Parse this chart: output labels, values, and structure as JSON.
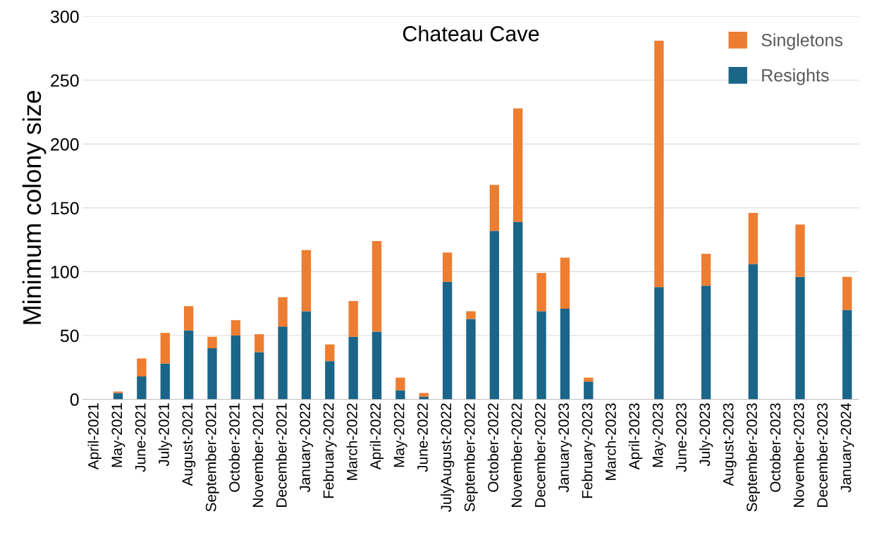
{
  "chart_data": {
    "type": "bar",
    "title": "Chateau Cave",
    "ylabel": "Minimum colony size",
    "stacked": true,
    "categories": [
      "April-2021",
      "May-2021",
      "June-2021",
      "July-2021",
      "August-2021",
      "September-2021",
      "October-2021",
      "November-2021",
      "December-2021",
      "January-2022",
      "February-2022",
      "March-2022",
      "April-2022",
      "May-2022",
      "June-2022",
      "JulyAugust-2022",
      "September-2022",
      "October-2022",
      "November-2022",
      "December-2022",
      "January-2023",
      "February-2023",
      "March-2023",
      "April-2023",
      "May-2023",
      "June-2023",
      "July-2023",
      "August-2023",
      "September-2023",
      "October-2023",
      "November-2023",
      "December-2023",
      "January-2024"
    ],
    "series": [
      {
        "name": "Resights",
        "color": "#1b6589",
        "values": [
          null,
          5,
          18,
          28,
          54,
          40,
          50,
          37,
          57,
          69,
          30,
          49,
          53,
          7,
          2,
          92,
          63,
          132,
          139,
          69,
          71,
          14,
          null,
          null,
          88,
          null,
          89,
          null,
          106,
          null,
          96,
          null,
          70
        ]
      },
      {
        "name": "Singletons",
        "color": "#ed7d31",
        "values": [
          null,
          1,
          14,
          24,
          19,
          9,
          12,
          14,
          23,
          48,
          13,
          28,
          71,
          10,
          3,
          23,
          6,
          36,
          89,
          30,
          40,
          3,
          null,
          null,
          193,
          null,
          25,
          null,
          40,
          null,
          41,
          null,
          26
        ]
      }
    ],
    "ylim": [
      0,
      300
    ],
    "yticks": [
      0,
      50,
      100,
      150,
      200,
      250,
      300
    ],
    "grid": "y",
    "legend": "top right"
  }
}
